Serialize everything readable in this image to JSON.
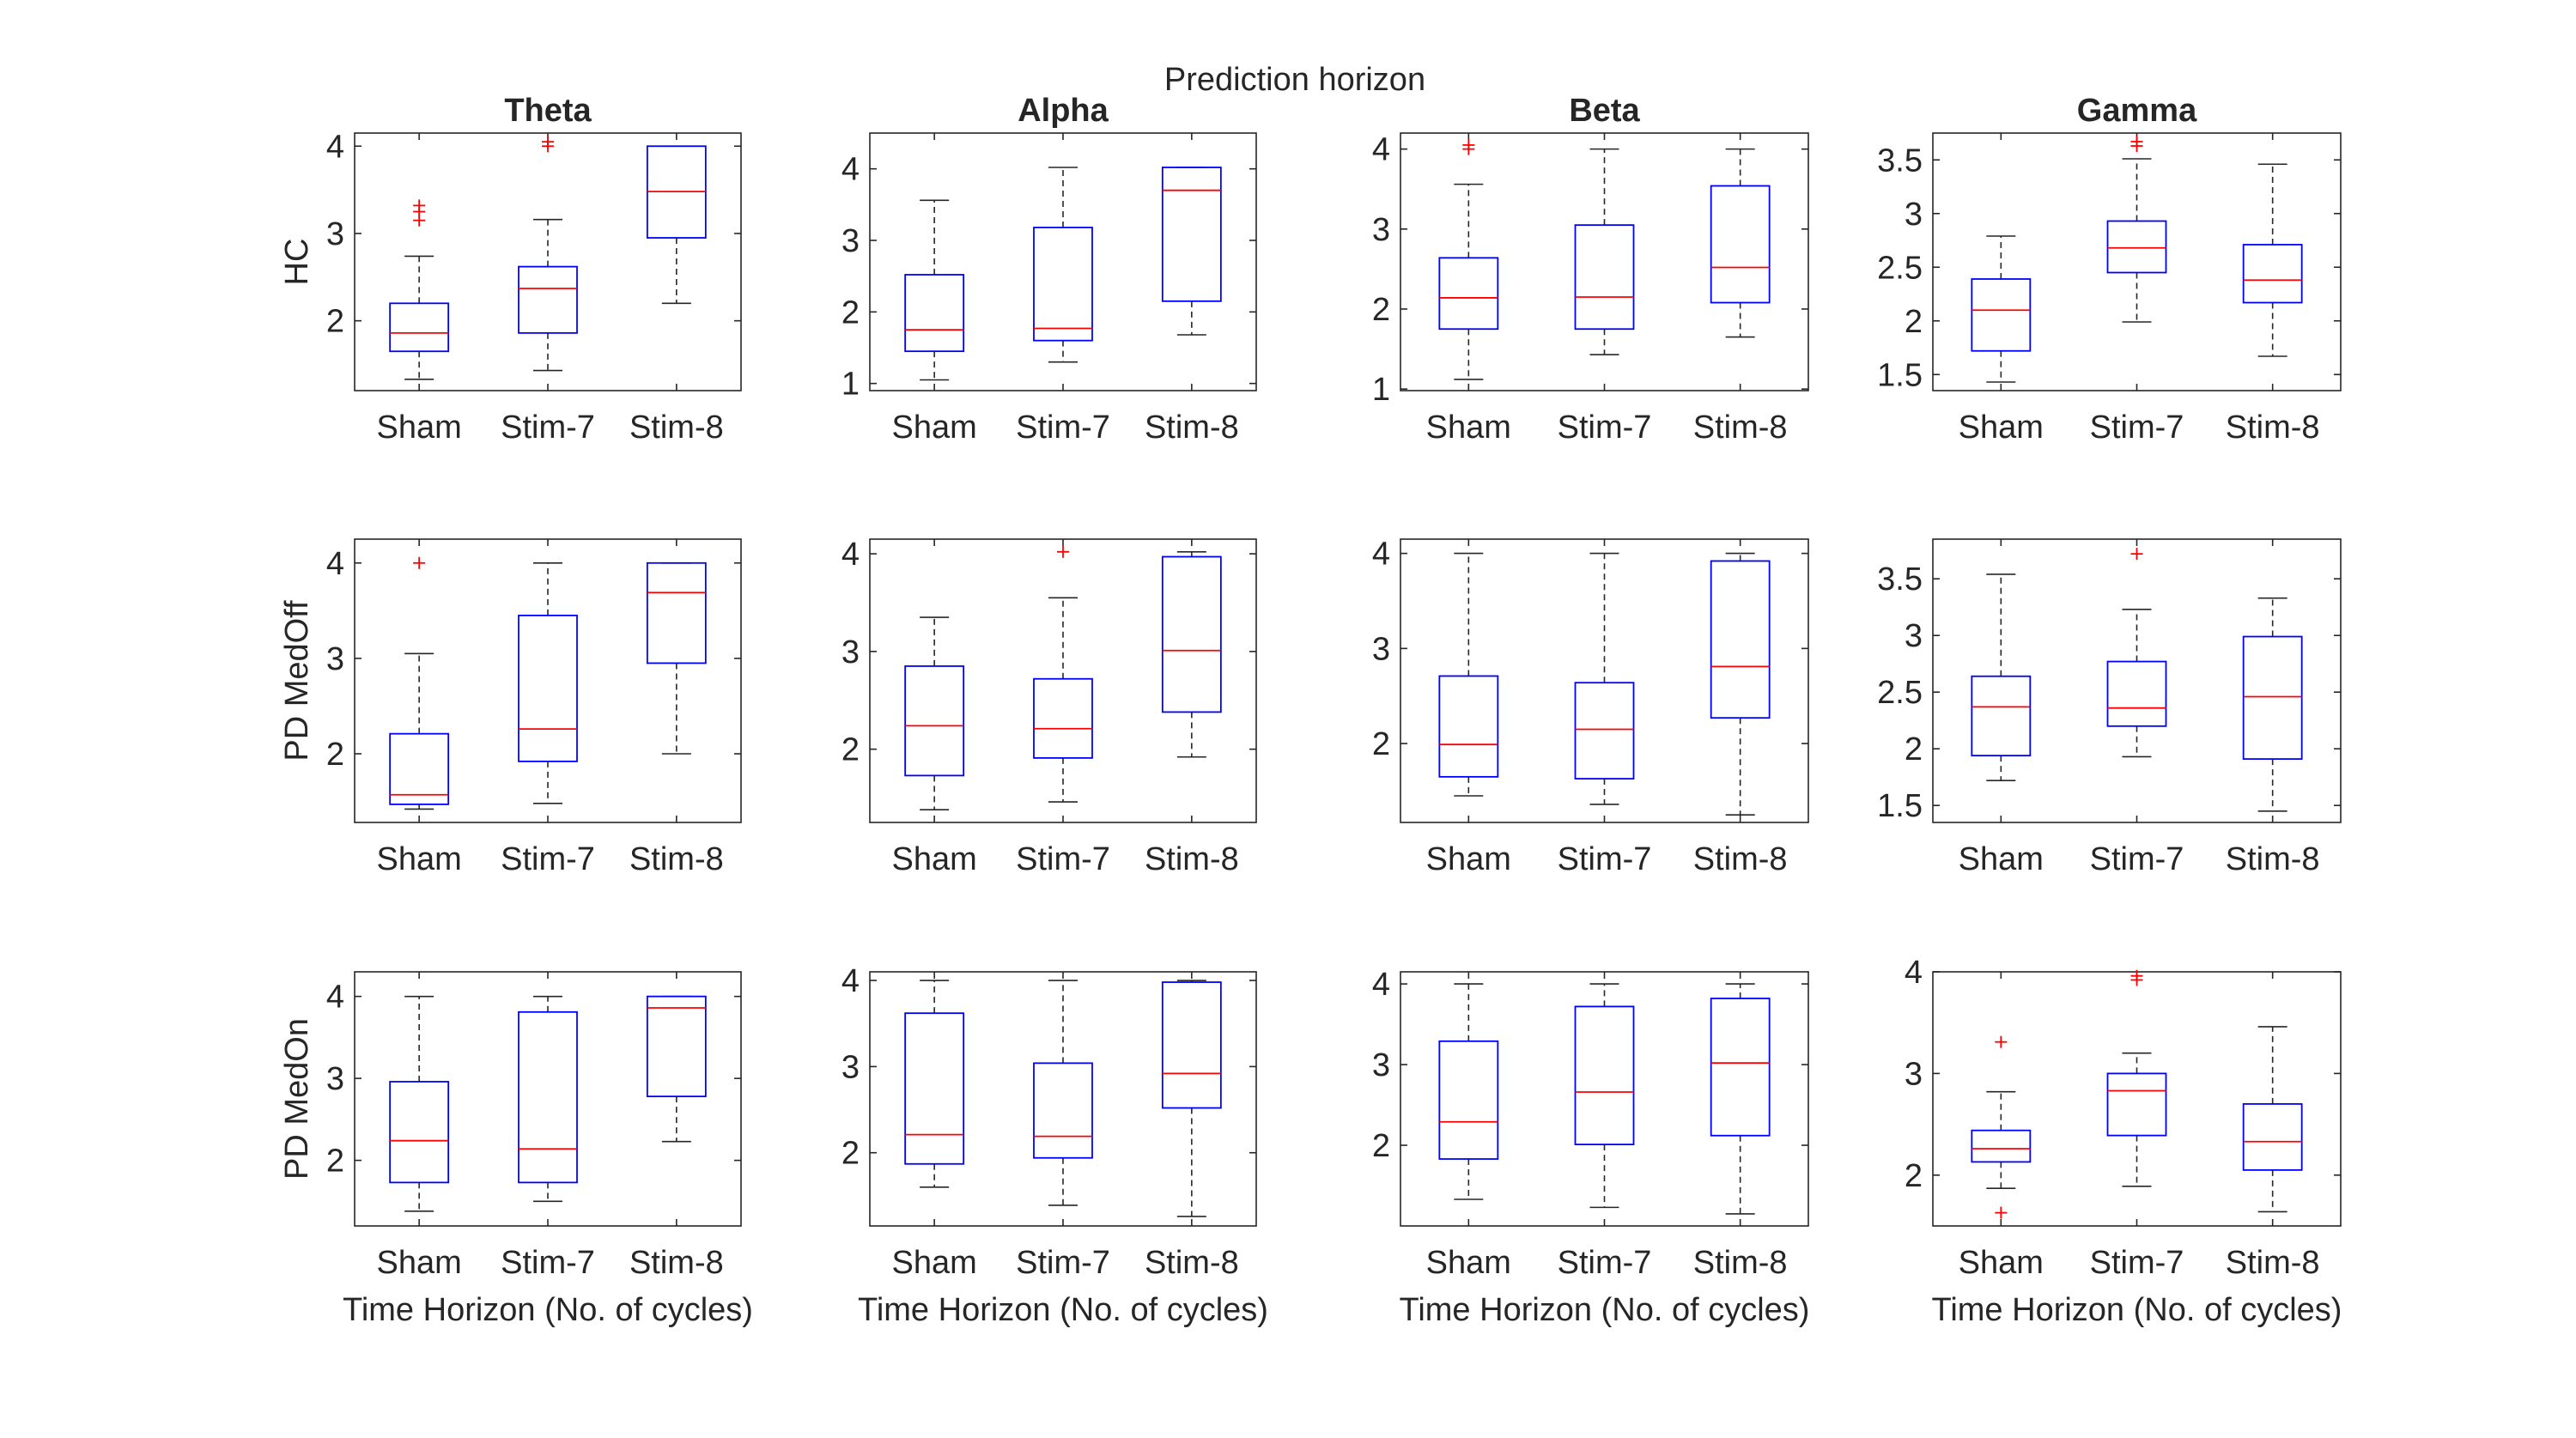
{
  "figure": {
    "suptitle": "Prediction horizon",
    "col_titles": [
      "Theta",
      "Alpha",
      "Beta",
      "Gamma"
    ],
    "row_labels": [
      "HC",
      "PD MedOff",
      "PD MedOn"
    ],
    "xlabel": "Time Horizon (No. of cycles)",
    "categories": [
      "Sham",
      "Stim-7",
      "Stim-8"
    ]
  },
  "colors": {
    "box": "#0000ff",
    "median": "#ff0000",
    "whisker": "#262626",
    "outlier": "#ff0000",
    "axes": "#262626"
  },
  "chart_data": [
    {
      "type": "box",
      "row": "HC",
      "band": "Theta",
      "ylim": [
        1.2,
        4.15
      ],
      "yticks": [
        "2",
        "3",
        "4"
      ],
      "boxes": [
        {
          "cat": "Sham",
          "min": 1.33,
          "q1": 1.65,
          "median": 1.86,
          "q3": 2.2,
          "max": 2.74,
          "outliers": [
            3.15,
            3.25,
            3.32
          ]
        },
        {
          "cat": "Stim-7",
          "min": 1.43,
          "q1": 1.86,
          "median": 2.37,
          "q3": 2.62,
          "max": 3.16,
          "outliers": [
            4.0,
            4.05
          ]
        },
        {
          "cat": "Stim-8",
          "min": 2.2,
          "q1": 2.95,
          "median": 3.48,
          "q3": 4.0,
          "max": 4.0,
          "outliers": []
        }
      ]
    },
    {
      "type": "box",
      "row": "HC",
      "band": "Alpha",
      "ylim": [
        0.9,
        4.5
      ],
      "yticks": [
        "1",
        "2",
        "3",
        "4"
      ],
      "boxes": [
        {
          "cat": "Sham",
          "min": 1.05,
          "q1": 1.45,
          "median": 1.75,
          "q3": 2.52,
          "max": 3.56,
          "outliers": []
        },
        {
          "cat": "Stim-7",
          "min": 1.3,
          "q1": 1.6,
          "median": 1.77,
          "q3": 3.18,
          "max": 4.02,
          "outliers": []
        },
        {
          "cat": "Stim-8",
          "min": 1.68,
          "q1": 2.15,
          "median": 3.7,
          "q3": 4.02,
          "max": 4.02,
          "outliers": []
        }
      ]
    },
    {
      "type": "box",
      "row": "HC",
      "band": "Beta",
      "ylim": [
        0.98,
        4.2
      ],
      "yticks": [
        "1",
        "2",
        "3",
        "4"
      ],
      "boxes": [
        {
          "cat": "Sham",
          "min": 1.12,
          "q1": 1.75,
          "median": 2.14,
          "q3": 2.64,
          "max": 3.56,
          "outliers": [
            4.0,
            4.05
          ]
        },
        {
          "cat": "Stim-7",
          "min": 1.43,
          "q1": 1.75,
          "median": 2.15,
          "q3": 3.05,
          "max": 4.0,
          "outliers": []
        },
        {
          "cat": "Stim-8",
          "min": 1.65,
          "q1": 2.08,
          "median": 2.52,
          "q3": 3.54,
          "max": 4.0,
          "outliers": []
        }
      ]
    },
    {
      "type": "box",
      "row": "HC",
      "band": "Gamma",
      "ylim": [
        1.35,
        3.75
      ],
      "yticks": [
        "1.5",
        "2",
        "2.5",
        "3",
        "3.5"
      ],
      "boxes": [
        {
          "cat": "Sham",
          "min": 1.43,
          "q1": 1.72,
          "median": 2.1,
          "q3": 2.39,
          "max": 2.79,
          "outliers": []
        },
        {
          "cat": "Stim-7",
          "min": 1.99,
          "q1": 2.45,
          "median": 2.68,
          "q3": 2.93,
          "max": 3.51,
          "outliers": [
            3.63,
            3.67
          ]
        },
        {
          "cat": "Stim-8",
          "min": 1.67,
          "q1": 2.17,
          "median": 2.38,
          "q3": 2.71,
          "max": 3.46,
          "outliers": []
        }
      ]
    },
    {
      "type": "box",
      "row": "PD MedOff",
      "band": "Theta",
      "ylim": [
        1.28,
        4.25
      ],
      "yticks": [
        "2",
        "3",
        "4"
      ],
      "boxes": [
        {
          "cat": "Sham",
          "min": 1.42,
          "q1": 1.47,
          "median": 1.57,
          "q3": 2.21,
          "max": 3.05,
          "outliers": [
            4.0
          ]
        },
        {
          "cat": "Stim-7",
          "min": 1.48,
          "q1": 1.92,
          "median": 2.26,
          "q3": 3.45,
          "max": 4.0,
          "outliers": []
        },
        {
          "cat": "Stim-8",
          "min": 2.0,
          "q1": 2.95,
          "median": 3.69,
          "q3": 4.0,
          "max": 4.0,
          "outliers": []
        }
      ]
    },
    {
      "type": "box",
      "row": "PD MedOff",
      "band": "Alpha",
      "ylim": [
        1.25,
        4.15
      ],
      "yticks": [
        "2",
        "3",
        "4"
      ],
      "boxes": [
        {
          "cat": "Sham",
          "min": 1.38,
          "q1": 1.73,
          "median": 2.24,
          "q3": 2.85,
          "max": 3.35,
          "outliers": []
        },
        {
          "cat": "Stim-7",
          "min": 1.46,
          "q1": 1.91,
          "median": 2.21,
          "q3": 2.72,
          "max": 3.55,
          "outliers": [
            4.02
          ]
        },
        {
          "cat": "Stim-8",
          "min": 1.92,
          "q1": 2.38,
          "median": 3.01,
          "q3": 3.97,
          "max": 4.02,
          "outliers": []
        }
      ]
    },
    {
      "type": "box",
      "row": "PD MedOff",
      "band": "Beta",
      "ylim": [
        1.17,
        4.15
      ],
      "yticks": [
        "2",
        "3",
        "4"
      ],
      "boxes": [
        {
          "cat": "Sham",
          "min": 1.45,
          "q1": 1.65,
          "median": 1.99,
          "q3": 2.71,
          "max": 4.0,
          "outliers": []
        },
        {
          "cat": "Stim-7",
          "min": 1.36,
          "q1": 1.63,
          "median": 2.15,
          "q3": 2.64,
          "max": 4.0,
          "outliers": []
        },
        {
          "cat": "Stim-8",
          "min": 1.25,
          "q1": 2.27,
          "median": 2.81,
          "q3": 3.92,
          "max": 4.0,
          "outliers": []
        }
      ]
    },
    {
      "type": "box",
      "row": "PD MedOff",
      "band": "Gamma",
      "ylim": [
        1.35,
        3.85
      ],
      "yticks": [
        "1.5",
        "2",
        "2.5",
        "3",
        "3.5"
      ],
      "boxes": [
        {
          "cat": "Sham",
          "min": 1.72,
          "q1": 1.94,
          "median": 2.37,
          "q3": 2.64,
          "max": 3.54,
          "outliers": []
        },
        {
          "cat": "Stim-7",
          "min": 1.93,
          "q1": 2.2,
          "median": 2.36,
          "q3": 2.77,
          "max": 3.23,
          "outliers": [
            3.72
          ]
        },
        {
          "cat": "Stim-8",
          "min": 1.45,
          "q1": 1.91,
          "median": 2.46,
          "q3": 2.99,
          "max": 3.33,
          "outliers": []
        }
      ]
    },
    {
      "type": "box",
      "row": "PD MedOn",
      "band": "Theta",
      "ylim": [
        1.2,
        4.3
      ],
      "yticks": [
        "2",
        "3",
        "4"
      ],
      "boxes": [
        {
          "cat": "Sham",
          "min": 1.38,
          "q1": 1.73,
          "median": 2.24,
          "q3": 2.96,
          "max": 4.0,
          "outliers": []
        },
        {
          "cat": "Stim-7",
          "min": 1.5,
          "q1": 1.73,
          "median": 2.14,
          "q3": 3.81,
          "max": 4.0,
          "outliers": []
        },
        {
          "cat": "Stim-8",
          "min": 2.23,
          "q1": 2.78,
          "median": 3.86,
          "q3": 4.0,
          "max": 4.0,
          "outliers": []
        }
      ]
    },
    {
      "type": "box",
      "row": "PD MedOn",
      "band": "Alpha",
      "ylim": [
        1.15,
        4.1
      ],
      "yticks": [
        "2",
        "3",
        "4"
      ],
      "boxes": [
        {
          "cat": "Sham",
          "min": 1.6,
          "q1": 1.87,
          "median": 2.21,
          "q3": 3.62,
          "max": 4.0,
          "outliers": []
        },
        {
          "cat": "Stim-7",
          "min": 1.39,
          "q1": 1.94,
          "median": 2.19,
          "q3": 3.04,
          "max": 4.0,
          "outliers": []
        },
        {
          "cat": "Stim-8",
          "min": 1.26,
          "q1": 2.52,
          "median": 2.92,
          "q3": 3.98,
          "max": 4.0,
          "outliers": []
        }
      ]
    },
    {
      "type": "box",
      "row": "PD MedOn",
      "band": "Beta",
      "ylim": [
        1.0,
        4.15
      ],
      "yticks": [
        "2",
        "3",
        "4"
      ],
      "boxes": [
        {
          "cat": "Sham",
          "min": 1.33,
          "q1": 1.83,
          "median": 2.29,
          "q3": 3.29,
          "max": 4.0,
          "outliers": []
        },
        {
          "cat": "Stim-7",
          "min": 1.23,
          "q1": 2.01,
          "median": 2.66,
          "q3": 3.72,
          "max": 4.0,
          "outliers": []
        },
        {
          "cat": "Stim-8",
          "min": 1.15,
          "q1": 2.12,
          "median": 3.02,
          "q3": 3.82,
          "max": 4.0,
          "outliers": []
        }
      ]
    },
    {
      "type": "box",
      "row": "PD MedOn",
      "band": "Gamma",
      "ylim": [
        1.5,
        4.0
      ],
      "yticks": [
        "2",
        "3",
        "4"
      ],
      "boxes": [
        {
          "cat": "Sham",
          "min": 1.87,
          "q1": 2.13,
          "median": 2.26,
          "q3": 2.44,
          "max": 2.82,
          "outliers": [
            1.63,
            3.31
          ]
        },
        {
          "cat": "Stim-7",
          "min": 1.89,
          "q1": 2.39,
          "median": 2.83,
          "q3": 3.0,
          "max": 3.2,
          "outliers": [
            3.92,
            3.96
          ]
        },
        {
          "cat": "Stim-8",
          "min": 1.64,
          "q1": 2.05,
          "median": 2.33,
          "q3": 2.7,
          "max": 3.46,
          "outliers": []
        }
      ]
    }
  ]
}
